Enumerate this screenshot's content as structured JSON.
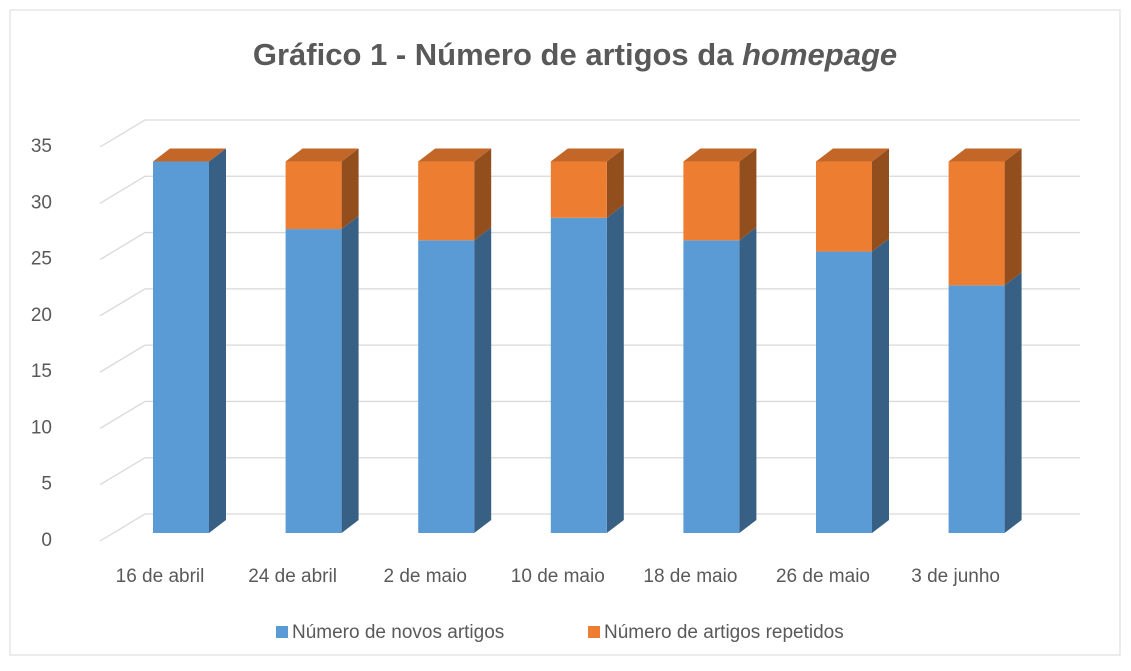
{
  "chart_data": {
    "type": "bar3d_stacked",
    "title": [
      "Gráfico 1 - Número de artigos da",
      "homepage"
    ],
    "categories": [
      "16 de abril",
      "24 de abril",
      "2 de maio",
      "10 de maio",
      "18 de maio",
      "26 de maio",
      "3 de junho"
    ],
    "series": [
      {
        "name": "Número de novos artigos",
        "color": "#5b9bd5",
        "values": [
          33,
          27,
          26,
          28,
          26,
          25,
          22
        ]
      },
      {
        "name": "Número de artigos repetidos",
        "color": "#ed7d31",
        "values": [
          0,
          6,
          7,
          5,
          7,
          8,
          11
        ]
      }
    ],
    "ylim": [
      0,
      35
    ],
    "yticks": [
      0,
      5,
      10,
      15,
      20,
      25,
      30,
      35
    ],
    "grid": true,
    "legend": "bottom"
  }
}
